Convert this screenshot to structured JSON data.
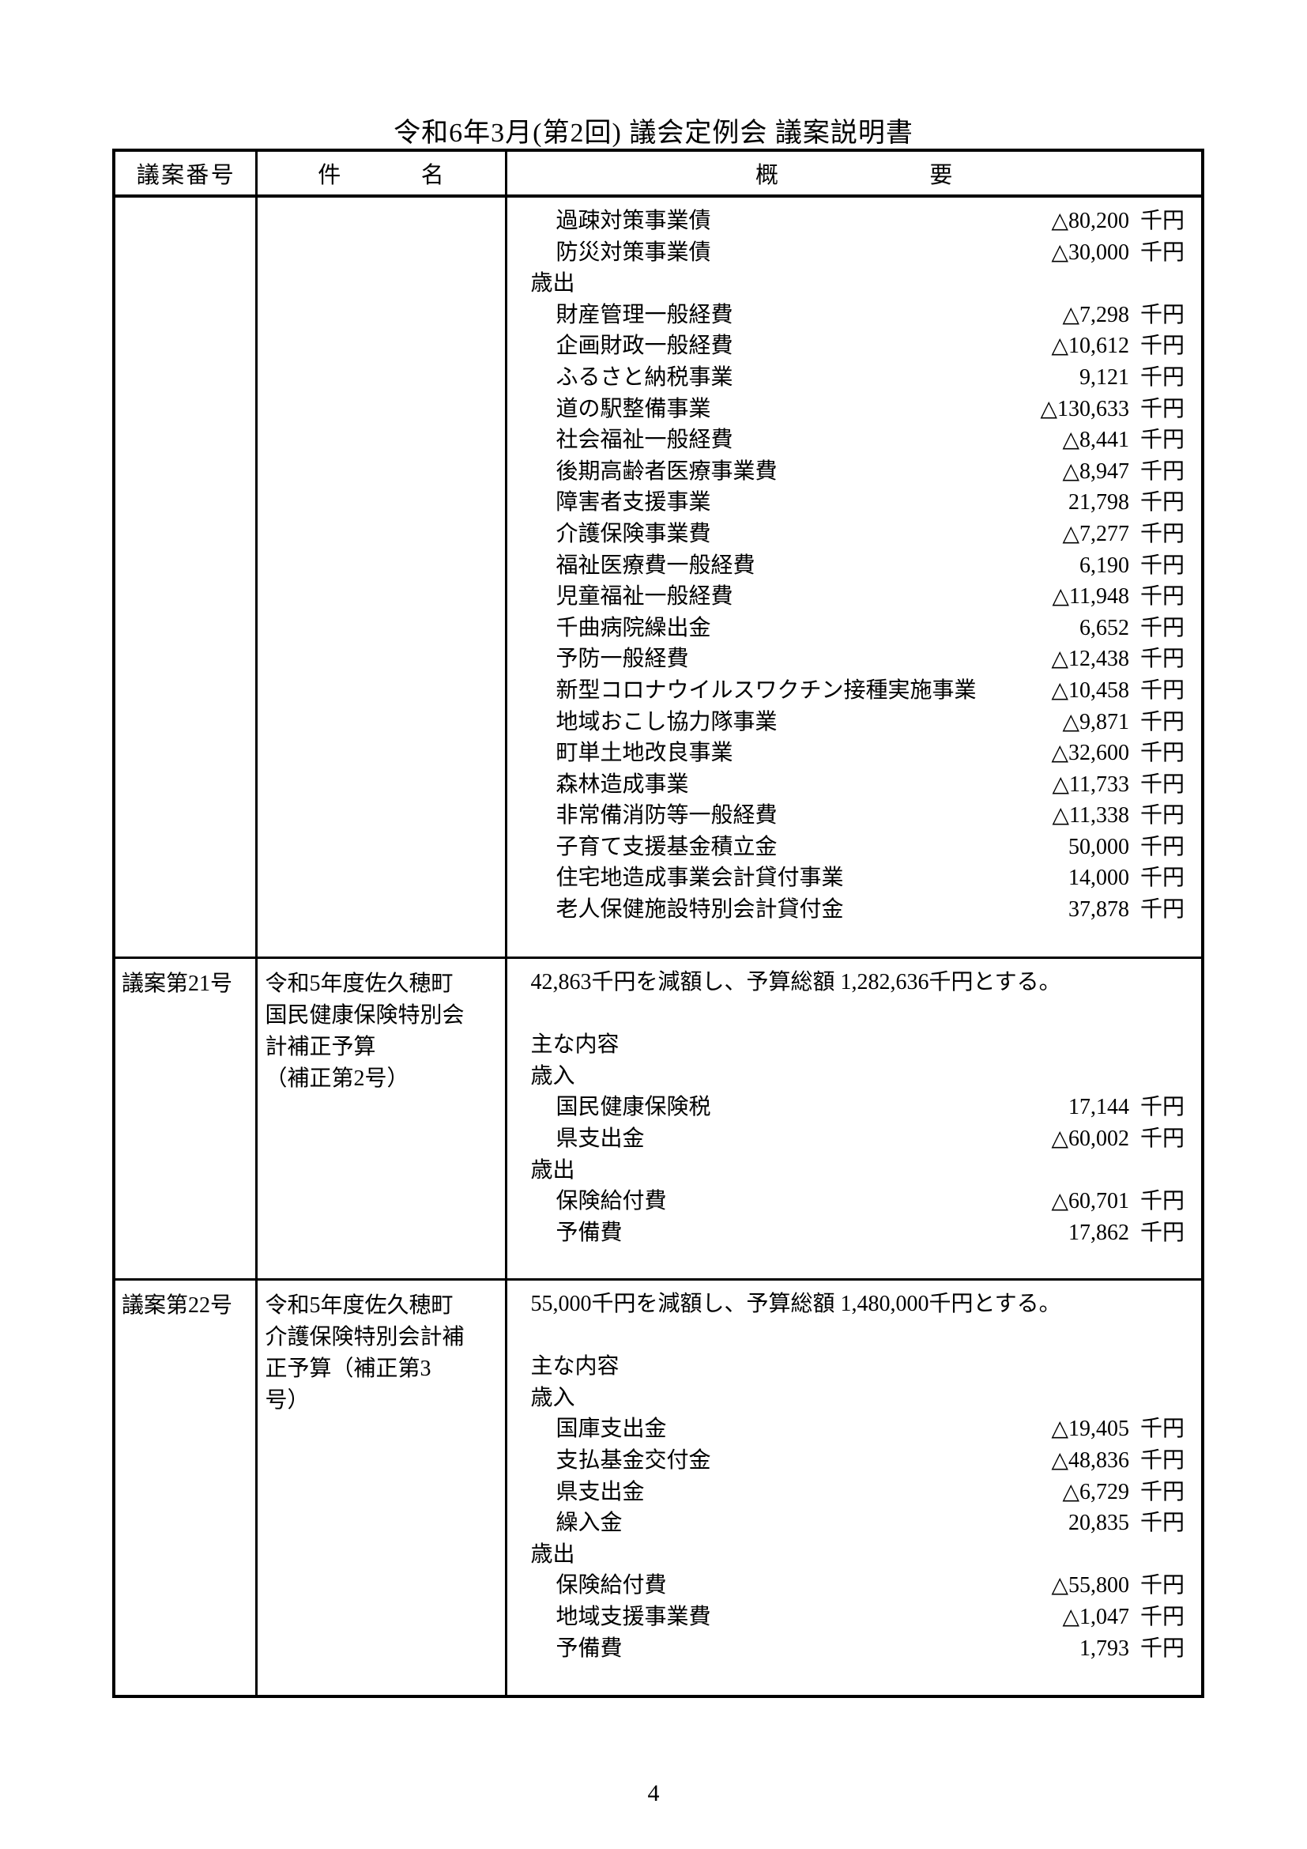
{
  "title": "令和6年3月(第2回) 議会定例会 議案説明書",
  "page_number": "4",
  "colors": {
    "ink": "#000000",
    "paper": "#ffffff"
  },
  "table": {
    "headers": {
      "bill_number": "議案番号",
      "subject": "件名",
      "summary": "概要"
    },
    "rows": [
      {
        "bill_number": "",
        "subject_lines": [],
        "summary_items": [
          {
            "kind": "item",
            "text": "過疎対策事業債",
            "amount": "△80,200",
            "unit": "千円"
          },
          {
            "kind": "item",
            "text": "防災対策事業債",
            "amount": "△30,000",
            "unit": "千円"
          },
          {
            "kind": "section",
            "text": "歳出"
          },
          {
            "kind": "item",
            "text": "財産管理一般経費",
            "amount": "△7,298",
            "unit": "千円"
          },
          {
            "kind": "item",
            "text": "企画財政一般経費",
            "amount": "△10,612",
            "unit": "千円"
          },
          {
            "kind": "item",
            "text": "ふるさと納税事業",
            "amount": "9,121",
            "unit": "千円"
          },
          {
            "kind": "item",
            "text": "道の駅整備事業",
            "amount": "△130,633",
            "unit": "千円"
          },
          {
            "kind": "item",
            "text": "社会福祉一般経費",
            "amount": "△8,441",
            "unit": "千円"
          },
          {
            "kind": "item",
            "text": "後期高齢者医療事業費",
            "amount": "△8,947",
            "unit": "千円"
          },
          {
            "kind": "item",
            "text": "障害者支援事業",
            "amount": "21,798",
            "unit": "千円"
          },
          {
            "kind": "item",
            "text": "介護保険事業費",
            "amount": "△7,277",
            "unit": "千円"
          },
          {
            "kind": "item",
            "text": "福祉医療費一般経費",
            "amount": "6,190",
            "unit": "千円"
          },
          {
            "kind": "item",
            "text": "児童福祉一般経費",
            "amount": "△11,948",
            "unit": "千円"
          },
          {
            "kind": "item",
            "text": "千曲病院繰出金",
            "amount": "6,652",
            "unit": "千円"
          },
          {
            "kind": "item",
            "text": "予防一般経費",
            "amount": "△12,438",
            "unit": "千円"
          },
          {
            "kind": "item",
            "text": "新型コロナウイルスワクチン接種実施事業",
            "amount": "△10,458",
            "unit": "千円"
          },
          {
            "kind": "item",
            "text": "地域おこし協力隊事業",
            "amount": "△9,871",
            "unit": "千円"
          },
          {
            "kind": "item",
            "text": "町単土地改良事業",
            "amount": "△32,600",
            "unit": "千円"
          },
          {
            "kind": "item",
            "text": "森林造成事業",
            "amount": "△11,733",
            "unit": "千円"
          },
          {
            "kind": "item",
            "text": "非常備消防等一般経費",
            "amount": "△11,338",
            "unit": "千円"
          },
          {
            "kind": "item",
            "text": "子育て支援基金積立金",
            "amount": "50,000",
            "unit": "千円"
          },
          {
            "kind": "item",
            "text": "住宅地造成事業会計貸付事業",
            "amount": "14,000",
            "unit": "千円"
          },
          {
            "kind": "item",
            "text": "老人保健施設特別会計貸付金",
            "amount": "37,878",
            "unit": "千円"
          }
        ]
      },
      {
        "bill_number": "議案第21号",
        "subject_lines": [
          "令和5年度佐久穂町",
          "国民健康保険特別会",
          "計補正予算",
          "（補正第2号）"
        ],
        "summary_items": [
          {
            "kind": "sentence",
            "text": "42,863千円を減額し、予算総額 1,282,636千円とする。"
          },
          {
            "kind": "blank",
            "text": ""
          },
          {
            "kind": "section",
            "text": "主な内容"
          },
          {
            "kind": "section",
            "text": "歳入"
          },
          {
            "kind": "item",
            "text": "国民健康保険税",
            "amount": "17,144",
            "unit": "千円"
          },
          {
            "kind": "item",
            "text": "県支出金",
            "amount": "△60,002",
            "unit": "千円"
          },
          {
            "kind": "section",
            "text": "歳出"
          },
          {
            "kind": "item",
            "text": "保険給付費",
            "amount": "△60,701",
            "unit": "千円"
          },
          {
            "kind": "item",
            "text": "予備費",
            "amount": "17,862",
            "unit": "千円"
          }
        ]
      },
      {
        "bill_number": "議案第22号",
        "subject_lines": [
          "令和5年度佐久穂町",
          "介護保険特別会計補",
          "正予算（補正第3",
          "号）"
        ],
        "summary_items": [
          {
            "kind": "sentence",
            "text": "55,000千円を減額し、予算総額 1,480,000千円とする。"
          },
          {
            "kind": "blank",
            "text": ""
          },
          {
            "kind": "section",
            "text": "主な内容"
          },
          {
            "kind": "section",
            "text": "歳入"
          },
          {
            "kind": "item",
            "text": "国庫支出金",
            "amount": "△19,405",
            "unit": "千円"
          },
          {
            "kind": "item",
            "text": "支払基金交付金",
            "amount": "△48,836",
            "unit": "千円"
          },
          {
            "kind": "item",
            "text": "県支出金",
            "amount": "△6,729",
            "unit": "千円"
          },
          {
            "kind": "item",
            "text": "繰入金",
            "amount": "20,835",
            "unit": "千円"
          },
          {
            "kind": "section",
            "text": "歳出"
          },
          {
            "kind": "item",
            "text": "保険給付費",
            "amount": "△55,800",
            "unit": "千円"
          },
          {
            "kind": "item",
            "text": "地域支援事業費",
            "amount": "△1,047",
            "unit": "千円"
          },
          {
            "kind": "item",
            "text": "予備費",
            "amount": "1,793",
            "unit": "千円"
          }
        ]
      }
    ]
  }
}
